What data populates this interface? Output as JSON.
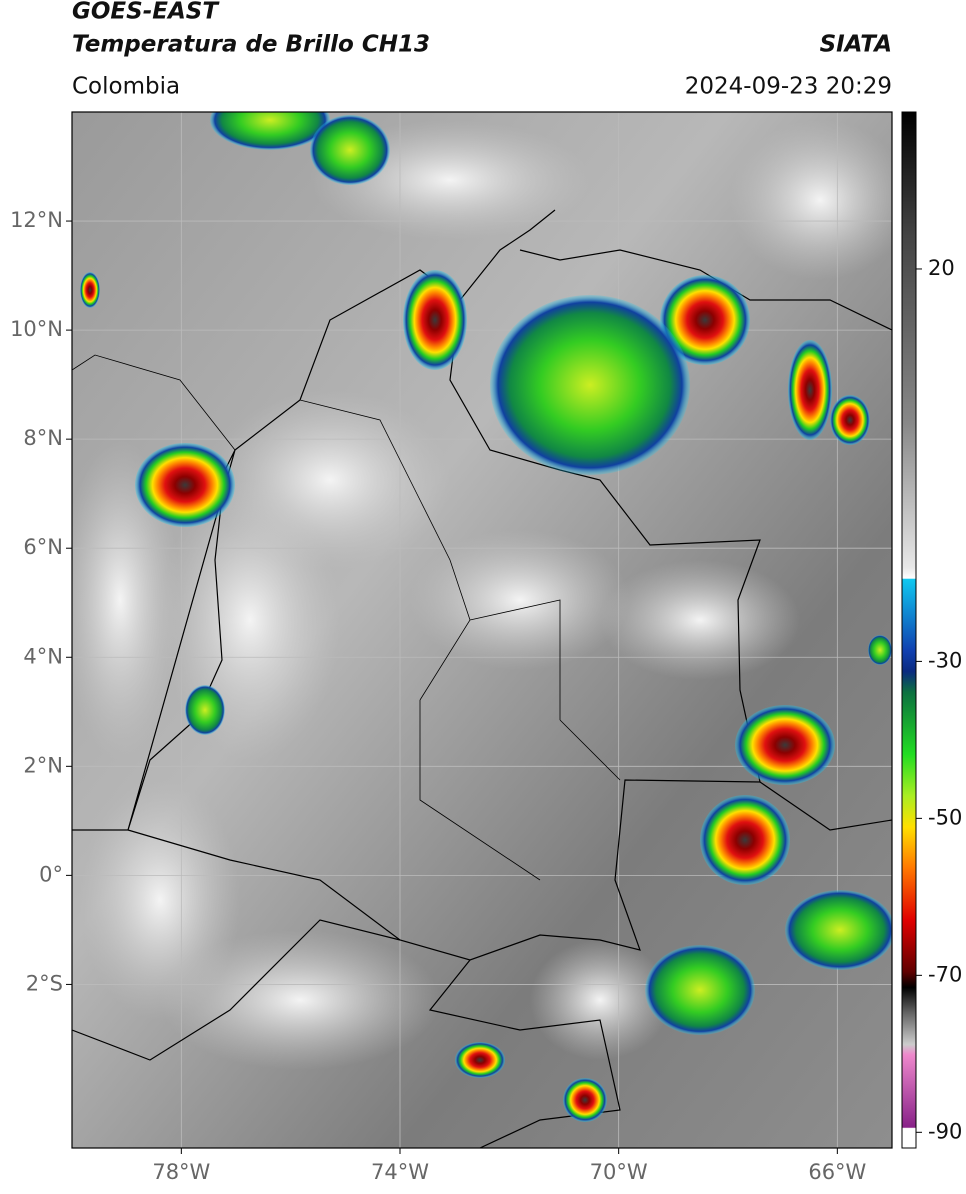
{
  "header": {
    "line1": "GOES-EAST",
    "title": "Temperatura de Brillo CH13",
    "source": "SIATA",
    "region": "Colombia",
    "datetime": "2024-09-23 20:29"
  },
  "map": {
    "xlim": [
      -80,
      -65
    ],
    "ylim": [
      -5,
      14
    ],
    "grid": true,
    "xticks": [
      {
        "value": -78,
        "label": "78°W"
      },
      {
        "value": -74,
        "label": "74°W"
      },
      {
        "value": -70,
        "label": "70°W"
      },
      {
        "value": -66,
        "label": "66°W"
      }
    ],
    "yticks": [
      {
        "value": 12,
        "label": "12°N"
      },
      {
        "value": 10,
        "label": "10°N"
      },
      {
        "value": 8,
        "label": "8°N"
      },
      {
        "value": 6,
        "label": "6°N"
      },
      {
        "value": 4,
        "label": "4°N"
      },
      {
        "value": 2,
        "label": "2°N"
      },
      {
        "value": 0,
        "label": "0°"
      },
      {
        "value": -2,
        "label": "2°S"
      }
    ]
  },
  "colorbar": {
    "lim": [
      -92,
      40
    ],
    "ticks": [
      20,
      -30,
      -50,
      -70,
      -90
    ]
  }
}
